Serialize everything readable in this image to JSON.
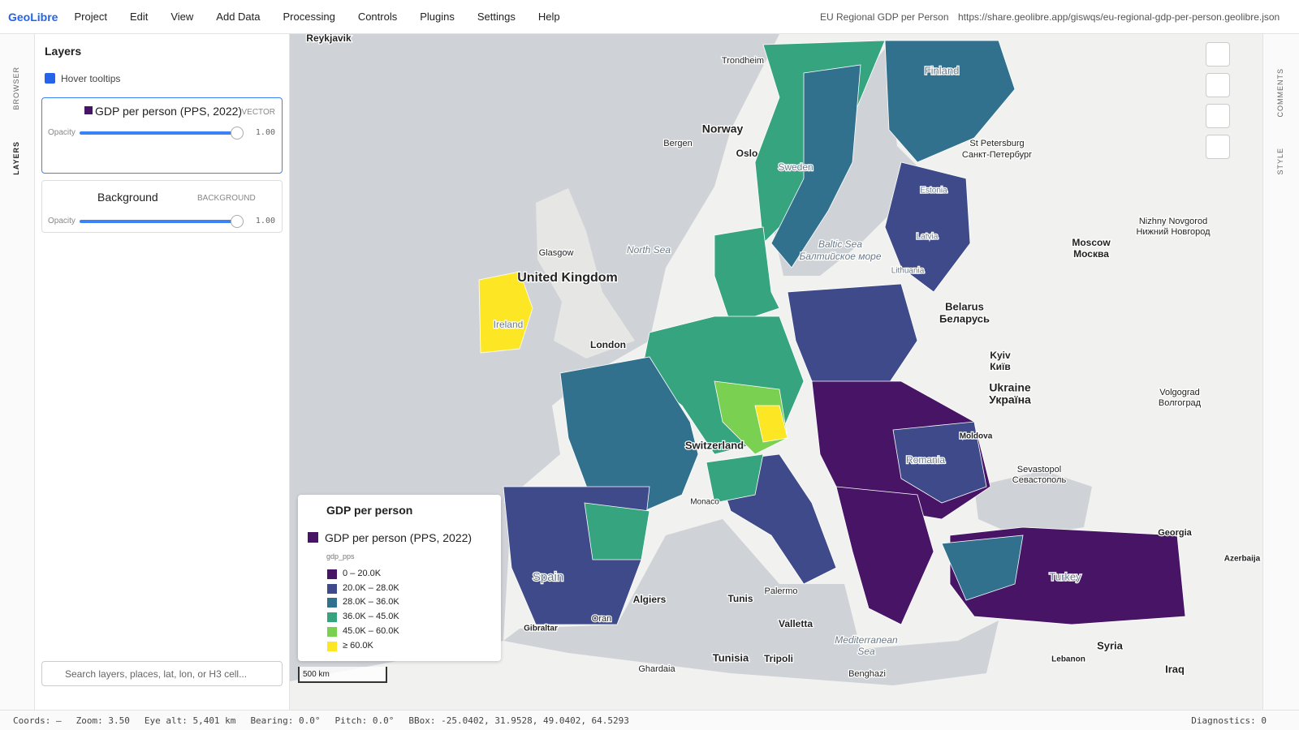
{
  "app": {
    "name": "GeoLibre",
    "menu": [
      "Project",
      "Edit",
      "View",
      "Add Data",
      "Processing",
      "Controls",
      "Plugins",
      "Settings",
      "Help"
    ],
    "doc_title": "EU Regional GDP per Person",
    "url": "https://share.geolibre.app/giswqs/eu-regional-gdp-per-person.geolibre.json"
  },
  "rail_left": [
    "BROWSER",
    "LAYERS"
  ],
  "rail_right": [
    "COMMENTS",
    "STYLE"
  ],
  "layers_panel": {
    "title": "Layers",
    "hover_tooltips": "Hover tooltips",
    "layers": [
      {
        "name": "GDP per person (PPS, 2022)",
        "kind": "VECTOR",
        "opacity_label": "Opacity",
        "opacity": "1.00"
      },
      {
        "name": "Background",
        "kind": "BACKGROUND",
        "opacity_label": "Opacity",
        "opacity": "1.00"
      }
    ],
    "search_placeholder": "Search layers, places, lat, lon, or H3 cell..."
  },
  "legend": {
    "title": "GDP per person",
    "layer": "GDP per person (PPS, 2022)",
    "field": "gdp_pps",
    "classes": [
      {
        "label": "0 – 20.0K",
        "color": "#471466"
      },
      {
        "label": "20.0K – 28.0K",
        "color": "#3e4a89"
      },
      {
        "label": "28.0K – 36.0K",
        "color": "#31718e"
      },
      {
        "label": "36.0K – 45.0K",
        "color": "#35a47f"
      },
      {
        "label": "45.0K – 60.0K",
        "color": "#7ad151"
      },
      {
        "label": "≥ 60.0K",
        "color": "#fde725"
      }
    ]
  },
  "map": {
    "scale": "500 km",
    "labels": [
      "Reykjavik",
      "Trondheim",
      "Norway",
      "Bergen",
      "Oslo",
      "Sweden",
      "Finland",
      "St Petersburg",
      "Санкт-Петербург",
      "Estonia",
      "Latvia",
      "North Sea",
      "Glasgow",
      "United Kingdom",
      "Baltic Sea",
      "Балтийское море",
      "Lithuania",
      "Moscow",
      "Москва",
      "Nizhny Novgorod",
      "Нижний Новгород",
      "Belarus",
      "Беларусь",
      "Ireland",
      "London",
      "Kyiv",
      "Київ",
      "Ukraine",
      "Україна",
      "Volgograd",
      "Волгоград",
      "Switzerland",
      "Moldova",
      "Romania",
      "Sevastopol",
      "Севастополь",
      "Georgia",
      "Azerbaija",
      "Spain",
      "Monaco",
      "Algiers",
      "Tunis",
      "Palermo",
      "Valletta",
      "Oran",
      "Gibraltar",
      "Tunisia",
      "Tripoli",
      "Ghardaia",
      "Benghazi",
      "Mediterranean",
      "Sea",
      "Syria",
      "Iraq",
      "Lebanon",
      "Turkey"
    ]
  },
  "status": [
    "Coords: —",
    "Zoom: 3.50",
    "Eye alt: 5,401 km",
    "Bearing: 0.0°",
    "Pitch: 0.0°",
    "BBox: -25.0402, 31.9528, 49.0402, 64.5293",
    "Diagnostics: 0"
  ]
}
